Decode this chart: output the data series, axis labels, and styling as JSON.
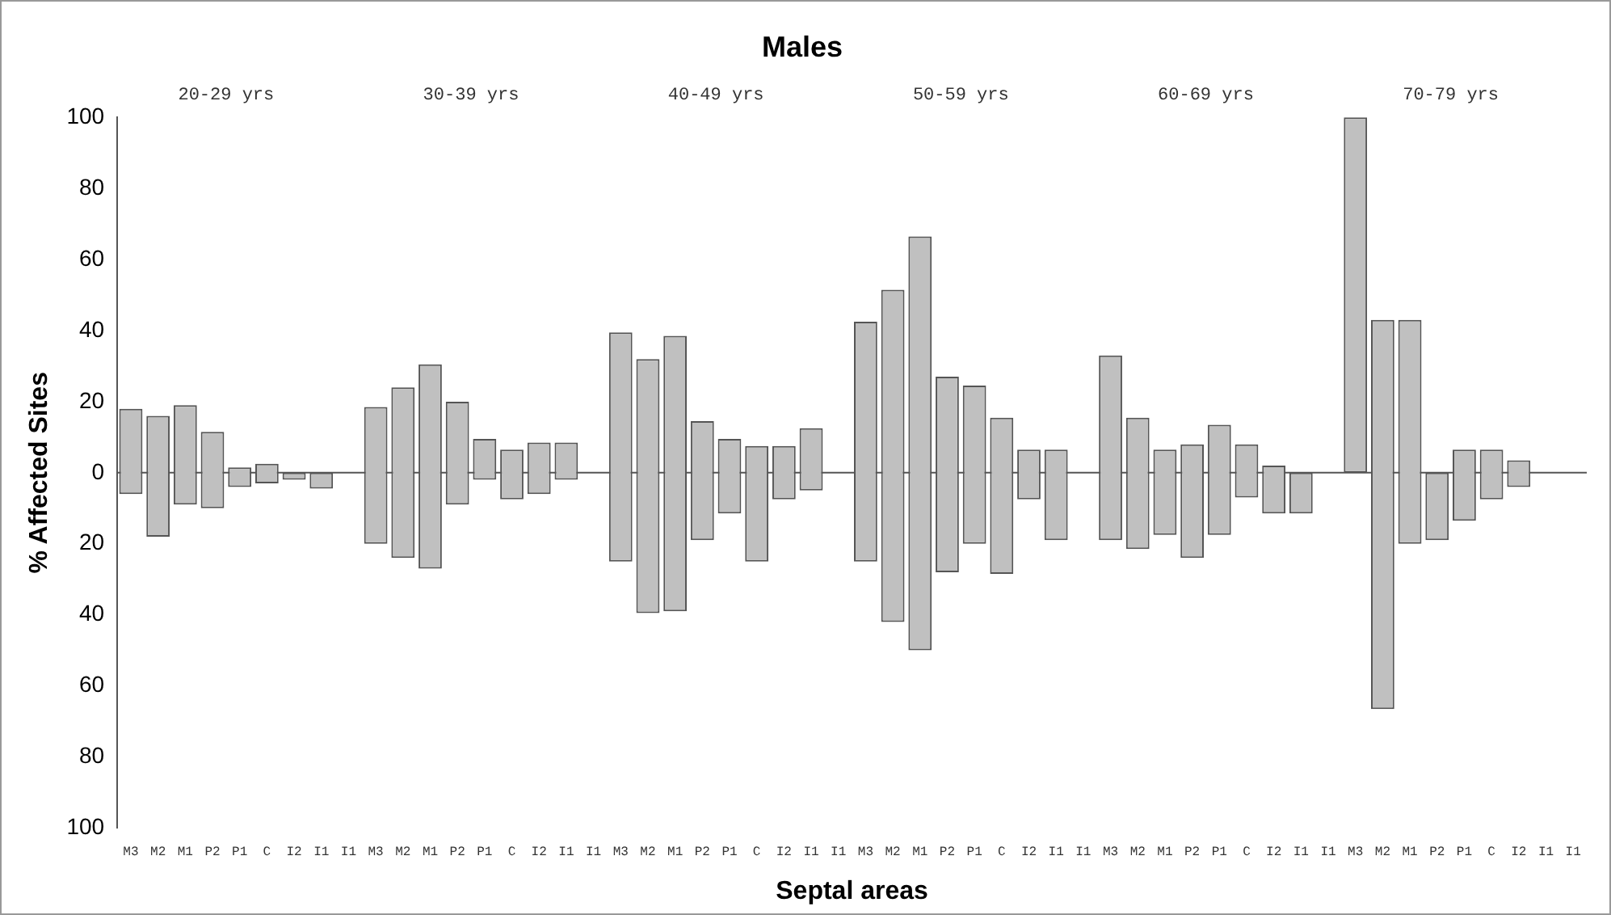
{
  "chart_data": {
    "type": "bar",
    "title": "Males",
    "xlabel": "Septal areas",
    "ylabel": "% Affected Sites",
    "categories": [
      "M3",
      "M2",
      "M1",
      "P2",
      "P1",
      "C",
      "I2",
      "I1",
      "I1",
      "M3",
      "M2",
      "M1",
      "P2",
      "P1",
      "C",
      "I2",
      "I1",
      "I1",
      "M3",
      "M2",
      "M1",
      "P2",
      "P1",
      "C",
      "I2",
      "I1",
      "I1",
      "M3",
      "M2",
      "M1",
      "P2",
      "P1",
      "C",
      "I2",
      "I1",
      "I1",
      "M3",
      "M2",
      "M1",
      "P2",
      "P1",
      "C",
      "I2",
      "I1",
      "I1",
      "M3",
      "M2",
      "M1",
      "P2",
      "P1",
      "C",
      "I2",
      "I1",
      "I1"
    ],
    "base": [
      -6,
      -18,
      -9,
      -10,
      -4,
      -3,
      -2,
      -4.5,
      null,
      -20,
      -24,
      -27,
      -9,
      -2,
      -7.5,
      -6,
      -2,
      null,
      -25,
      -39.5,
      -39,
      -19,
      -11.5,
      -25,
      -7.5,
      -5,
      null,
      -25,
      -42,
      -50,
      -28,
      -20,
      -28.5,
      -7.5,
      -19,
      null,
      -19,
      -21.5,
      -17.5,
      -24,
      -17.5,
      -7,
      -11.5,
      -11.5,
      null,
      0,
      -66.5,
      -20,
      -19,
      -13.5,
      -7.5,
      -4,
      null,
      null
    ],
    "values": [
      24,
      34,
      28,
      21.5,
      5.5,
      5.5,
      2,
      4.5,
      null,
      38.5,
      48,
      57.5,
      29,
      11.5,
      14,
      14.5,
      10.5,
      null,
      64.5,
      71.5,
      77.5,
      33.5,
      21,
      32.5,
      15,
      17.5,
      null,
      67.5,
      93.5,
      116.5,
      55,
      44.5,
      44,
      14,
      25.5,
      null,
      52,
      37,
      24,
      32,
      31,
      15,
      13.5,
      11.5,
      null,
      100,
      109.5,
      63,
      19,
      20,
      14,
      7.5,
      null,
      null
    ],
    "color": "#c0c0c0",
    "ylim": [
      -100,
      100
    ],
    "yticks": [
      {
        "value": -100,
        "label": "100"
      },
      {
        "value": -80,
        "label": "80"
      },
      {
        "value": -60,
        "label": "60"
      },
      {
        "value": -40,
        "label": "40"
      },
      {
        "value": -20,
        "label": "20"
      },
      0,
      20,
      40,
      60,
      80,
      100
    ],
    "annotations": [
      "20-29 yrs",
      "30-39 yrs",
      "40-49 yrs",
      "50-59 yrs",
      "60-69 yrs",
      "70-79 yrs"
    ]
  }
}
